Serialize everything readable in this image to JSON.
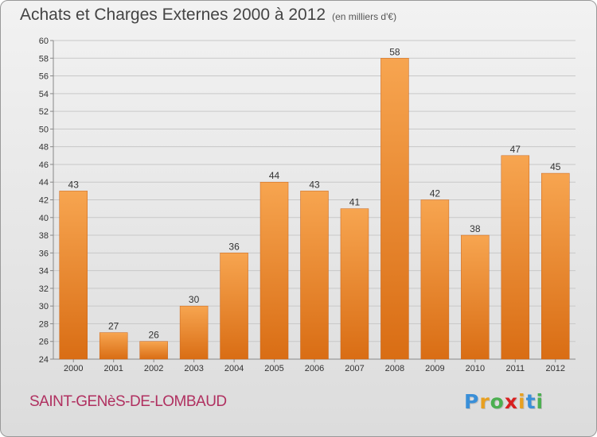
{
  "title": "Achats et Charges Externes 2000 à 2012",
  "unit": "(en milliers d'€)",
  "commune": "SAINT-GENèS-DE-LOMBAUD",
  "logo": {
    "text": "Proxiti",
    "colors": [
      "#3a8fd8",
      "#e8a020",
      "#4caf50",
      "#d82020",
      "#e8a020",
      "#3a8fd8",
      "#4caf50"
    ]
  },
  "colors": {
    "bar_top": "#f7a550",
    "bar_bottom": "#d96d14",
    "axis": "#888888",
    "grid": "#c8c8c8"
  },
  "chart_data": {
    "type": "bar",
    "title": "Achats et Charges Externes 2000 à 2012",
    "xlabel": "",
    "ylabel": "",
    "ylim": [
      24,
      60
    ],
    "yticks": [
      24,
      26,
      28,
      30,
      32,
      34,
      36,
      38,
      40,
      42,
      44,
      46,
      48,
      50,
      52,
      54,
      56,
      58,
      60
    ],
    "grid": true,
    "categories": [
      "2000",
      "2001",
      "2002",
      "2003",
      "2004",
      "2005",
      "2006",
      "2007",
      "2008",
      "2009",
      "2010",
      "2011",
      "2012"
    ],
    "values": [
      43,
      27,
      26,
      30,
      36,
      44,
      43,
      41,
      58,
      42,
      38,
      47,
      45
    ]
  }
}
